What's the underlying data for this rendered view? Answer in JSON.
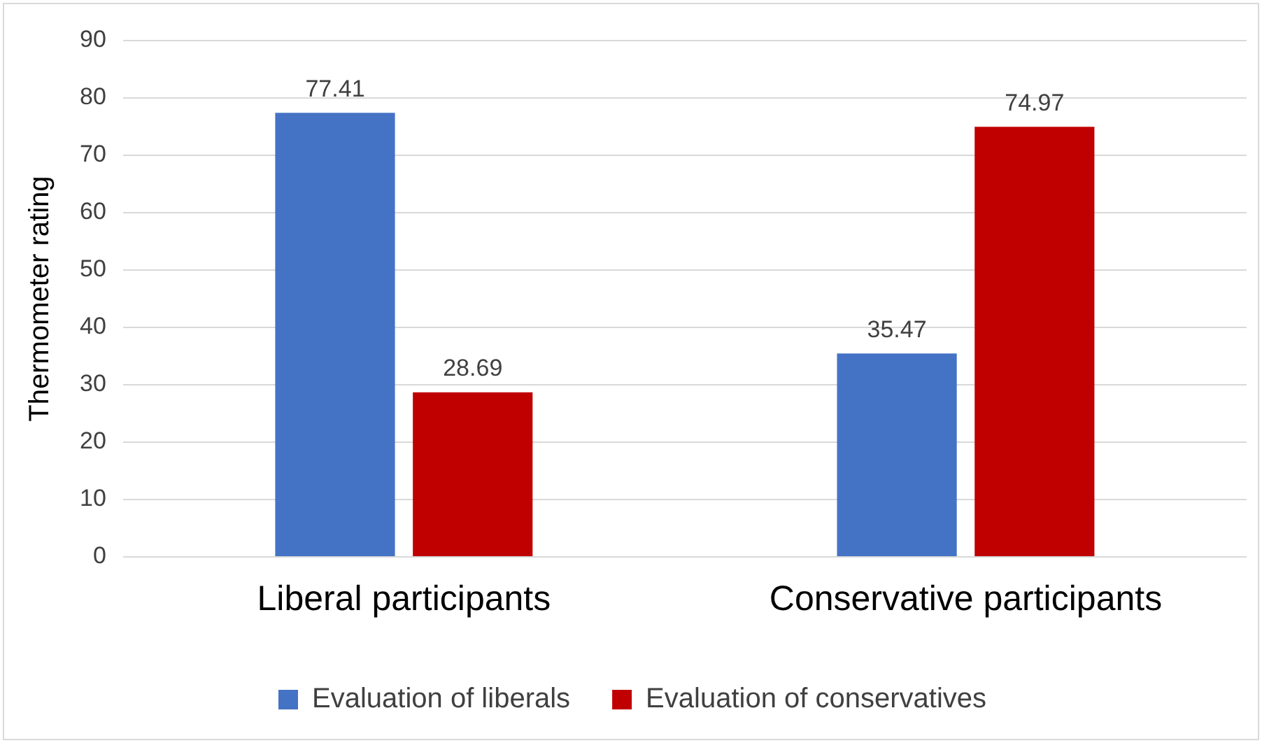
{
  "chart_data": {
    "type": "bar",
    "ylabel": "Thermometer rating",
    "categories": [
      "Liberal participants",
      "Conservative participants"
    ],
    "series": [
      {
        "name": "Evaluation of liberals",
        "color": "#4472c4",
        "values": [
          77.41,
          35.47
        ]
      },
      {
        "name": "Evaluation of conservatives",
        "color": "#c00000",
        "values": [
          28.69,
          74.97
        ]
      }
    ],
    "ylim": [
      0,
      90
    ],
    "yticks": [
      0,
      10,
      20,
      30,
      40,
      50,
      60,
      70,
      80,
      90
    ],
    "grid": "y",
    "legend": "bottom",
    "data_labels": true
  }
}
